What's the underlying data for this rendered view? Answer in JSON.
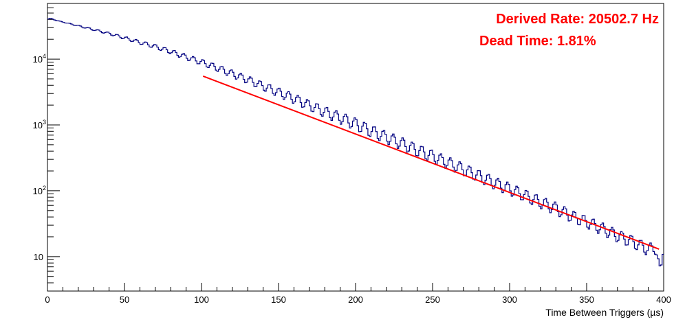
{
  "chart_data": {
    "type": "line",
    "xlabel": "Time Between Triggers (µs)",
    "xlim": [
      0,
      400
    ],
    "ylim": [
      3,
      70000
    ],
    "yscale": "log",
    "grid": false,
    "x_ticks": [
      "0",
      "50",
      "100",
      "150",
      "200",
      "250",
      "300",
      "350",
      "400"
    ],
    "y_ticks": [
      {
        "value": 10,
        "base": "10",
        "exp": ""
      },
      {
        "value": 100,
        "base": "10",
        "exp": "2"
      },
      {
        "value": 1000,
        "base": "10",
        "exp": "3"
      },
      {
        "value": 10000,
        "base": "10",
        "exp": "4"
      }
    ],
    "annotations": [
      "Derived Rate: 20502.7 Hz",
      "Dead Time: 1.81%"
    ],
    "series": [
      {
        "type": "histogram",
        "color": "#000080",
        "x": [
          0,
          2,
          5,
          10,
          20,
          30,
          40,
          50,
          60,
          70,
          80,
          90,
          100,
          110,
          120,
          130,
          140,
          150,
          160,
          170,
          180,
          190,
          200,
          210,
          220,
          230,
          240,
          250,
          260,
          270,
          280,
          290,
          300,
          310,
          320,
          330,
          340,
          350,
          360,
          370,
          380,
          390,
          395,
          398,
          400
        ],
        "values": [
          40000,
          42000,
          39000,
          36500,
          32000,
          28000,
          24500,
          21000,
          18000,
          15500,
          13000,
          10800,
          9000,
          7400,
          6000,
          4900,
          3900,
          3150,
          2550,
          2000,
          1600,
          1300,
          1050,
          820,
          660,
          530,
          420,
          340,
          270,
          215,
          170,
          135,
          108,
          86,
          68,
          55,
          42,
          34,
          27,
          21,
          17,
          13,
          14,
          5,
          16
        ]
      },
      {
        "type": "fit",
        "color": "#ff0000",
        "x": [
          101,
          397
        ],
        "values": [
          5500,
          13
        ]
      }
    ]
  }
}
